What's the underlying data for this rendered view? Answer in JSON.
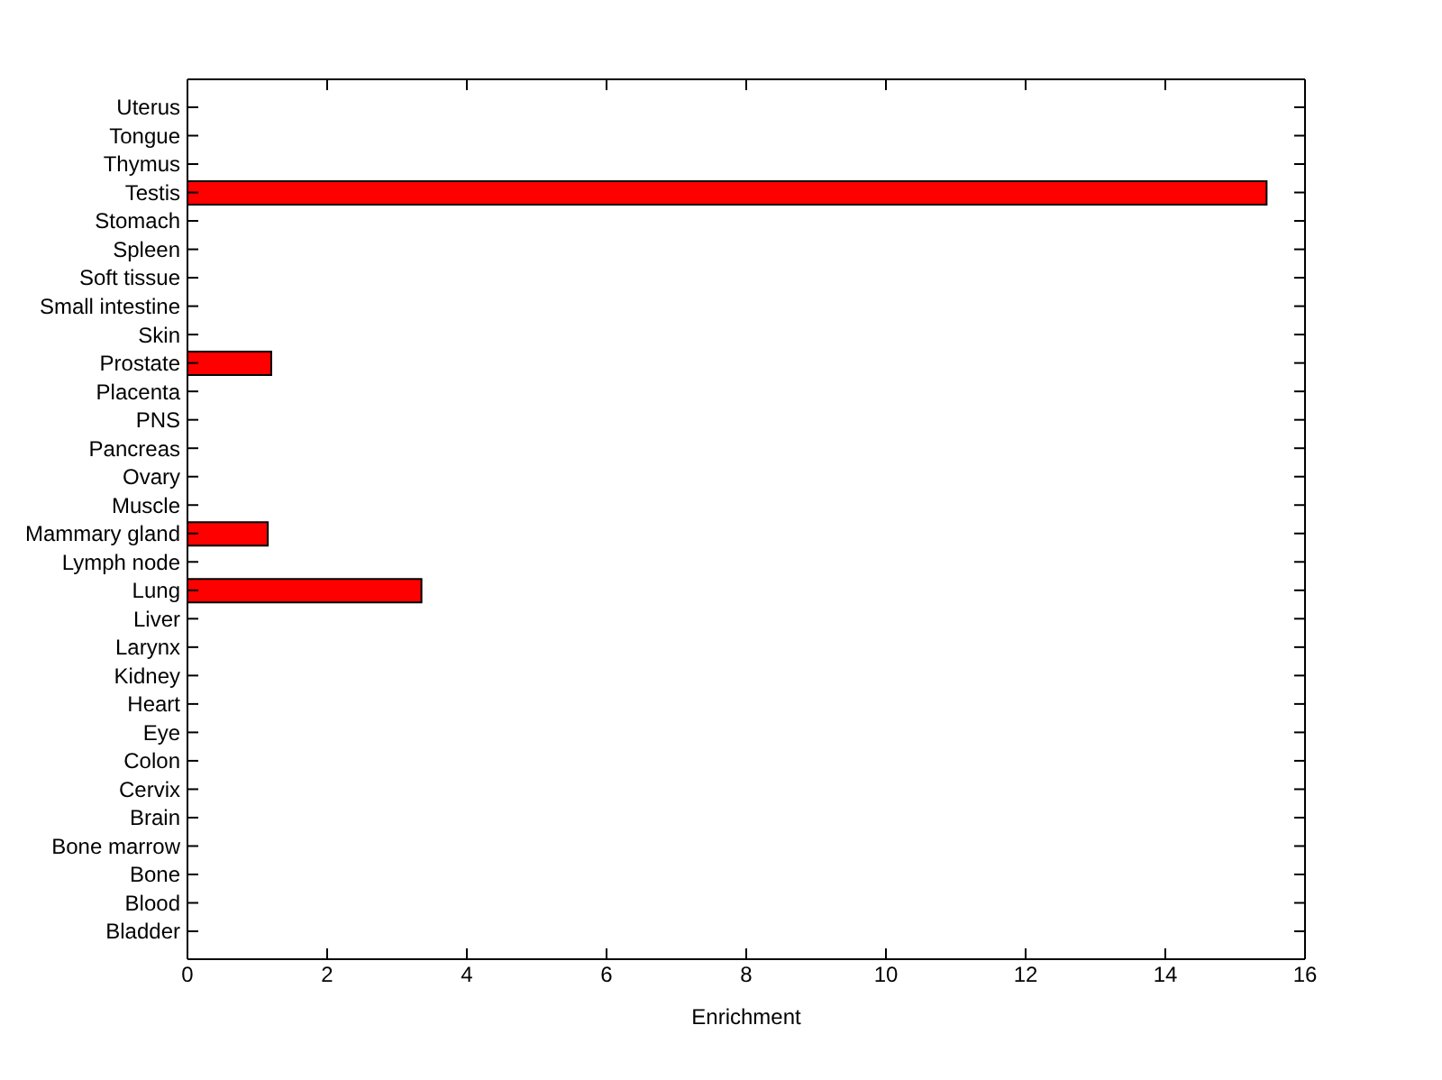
{
  "chart_data": {
    "type": "bar",
    "orientation": "horizontal",
    "xlabel": "Enrichment",
    "categories": [
      "Uterus",
      "Tongue",
      "Thymus",
      "Testis",
      "Stomach",
      "Spleen",
      "Soft tissue",
      "Small intestine",
      "Skin",
      "Prostate",
      "Placenta",
      "PNS",
      "Pancreas",
      "Ovary",
      "Muscle",
      "Mammary gland",
      "Lymph node",
      "Lung",
      "Liver",
      "Larynx",
      "Kidney",
      "Heart",
      "Eye",
      "Colon",
      "Cervix",
      "Brain",
      "Bone marrow",
      "Bone",
      "Blood",
      "Bladder"
    ],
    "values": [
      0,
      0,
      0,
      15.45,
      0,
      0,
      0,
      0,
      0,
      1.2,
      0,
      0,
      0,
      0,
      0,
      1.15,
      0,
      3.35,
      0,
      0,
      0,
      0,
      0,
      0,
      0,
      0,
      0,
      0,
      0,
      0
    ],
    "color": "#ff0000",
    "xlim": [
      0,
      16
    ],
    "xticks": [
      0,
      2,
      4,
      6,
      8,
      10,
      12,
      14,
      16
    ]
  }
}
